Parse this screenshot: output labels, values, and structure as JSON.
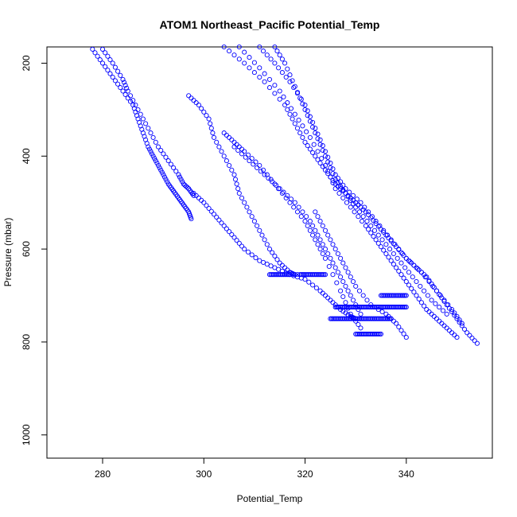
{
  "chart_data": {
    "type": "scatter",
    "title": "ATOM1 Northeast_Pacific Potential_Temp",
    "xlabel": "Potential_Temp",
    "ylabel": "Pressure (mbar)",
    "xlim": [
      269,
      357
    ],
    "ylim": [
      1050,
      165
    ],
    "y_reversed": true,
    "x_ticks": [
      280,
      300,
      320,
      340
    ],
    "y_ticks": [
      200,
      400,
      600,
      800,
      1000
    ],
    "marker": "open-circle",
    "color": "#0000ff",
    "grid": false,
    "series": [
      {
        "x": [
          278,
          280,
          282,
          284,
          286,
          287,
          288,
          289,
          290,
          291,
          292,
          293,
          294,
          295,
          296,
          297,
          297.5
        ],
        "y": [
          170,
          200,
          230,
          260,
          290,
          320,
          350,
          380,
          400,
          420,
          440,
          460,
          475,
          490,
          505,
          520,
          535
        ]
      },
      {
        "x": [
          280,
          282,
          284,
          285,
          287,
          289,
          291,
          293,
          295,
          296,
          297,
          298
        ],
        "y": [
          170,
          200,
          235,
          260,
          300,
          340,
          380,
          410,
          440,
          460,
          470,
          485
        ]
      },
      {
        "x": [
          297,
          299,
          301,
          302,
          304,
          306,
          307,
          309,
          311,
          313,
          315,
          317,
          318
        ],
        "y": [
          270,
          290,
          320,
          360,
          400,
          440,
          480,
          520,
          560,
          600,
          630,
          650,
          655
        ]
      },
      {
        "x": [
          298,
          300,
          302,
          304,
          306,
          308,
          311,
          314,
          317,
          320,
          323,
          325,
          327,
          329,
          330
        ],
        "y": [
          480,
          500,
          525,
          550,
          575,
          600,
          625,
          640,
          655,
          665,
          690,
          710,
          730,
          745,
          750
        ]
      },
      {
        "x": [
          304,
          306,
          308,
          311,
          314,
          317,
          320,
          322,
          324,
          327,
          329,
          331
        ],
        "y": [
          350,
          370,
          390,
          420,
          460,
          500,
          540,
          580,
          620,
          690,
          740,
          770
        ]
      },
      {
        "x": [
          306,
          309,
          312,
          315,
          318,
          321,
          323,
          325,
          327,
          329,
          331
        ],
        "y": [
          380,
          410,
          440,
          470,
          500,
          540,
          580,
          620,
          660,
          700,
          740
        ]
      },
      {
        "x": [
          304,
          308,
          312,
          316,
          318,
          320,
          322,
          324,
          326,
          328,
          330,
          332,
          334,
          336,
          338,
          340,
          342,
          344,
          346,
          348,
          350,
          352,
          354
        ],
        "y": [
          165,
          200,
          240,
          290,
          330,
          370,
          400,
          430,
          460,
          480,
          500,
          520,
          545,
          570,
          595,
          620,
          640,
          660,
          690,
          720,
          750,
          780,
          803
        ]
      },
      {
        "x": [
          307,
          311,
          315,
          318,
          321,
          324,
          326,
          329,
          332,
          334,
          336,
          338,
          340,
          342,
          344,
          346,
          348,
          350
        ],
        "y": [
          165,
          210,
          260,
          310,
          360,
          420,
          470,
          510,
          550,
          580,
          610,
          640,
          670,
          700,
          730,
          750,
          770,
          790
        ]
      },
      {
        "x": [
          311,
          314,
          317,
          320,
          322,
          324,
          326,
          328,
          331,
          334,
          337,
          340,
          343,
          346,
          349,
          351
        ],
        "y": [
          165,
          200,
          240,
          290,
          340,
          390,
          440,
          470,
          500,
          540,
          580,
          620,
          650,
          690,
          730,
          760
        ]
      },
      {
        "x": [
          314,
          316,
          318,
          320,
          322,
          324,
          326,
          328,
          330,
          333,
          336,
          339,
          342,
          345,
          348
        ],
        "y": [
          165,
          200,
          250,
          300,
          350,
          400,
          450,
          480,
          510,
          550,
          590,
          630,
          670,
          710,
          740
        ]
      },
      {
        "x": [
          322,
          324,
          326,
          328,
          330,
          333,
          336,
          338,
          340
        ],
        "y": [
          520,
          560,
          600,
          640,
          680,
          720,
          740,
          760,
          790
        ]
      },
      {
        "x": [
          313,
          314,
          315,
          316,
          317,
          319,
          320,
          321,
          322,
          323,
          324
        ],
        "y": [
          655,
          655,
          655,
          655,
          655,
          655,
          655,
          655,
          655,
          655,
          655
        ]
      },
      {
        "x": [
          326,
          327,
          328,
          329,
          330,
          331,
          332,
          333,
          334,
          335,
          336,
          337,
          338,
          339,
          340
        ],
        "y": [
          725,
          725,
          725,
          725,
          725,
          725,
          725,
          725,
          725,
          725,
          725,
          725,
          725,
          725,
          725
        ]
      },
      {
        "x": [
          325,
          326,
          327,
          328,
          329,
          330,
          331,
          332,
          333,
          334,
          335,
          336,
          337
        ],
        "y": [
          750,
          750,
          750,
          750,
          750,
          750,
          750,
          750,
          750,
          750,
          750,
          750,
          750
        ]
      },
      {
        "x": [
          330,
          331,
          332,
          333,
          334,
          335
        ],
        "y": [
          783,
          783,
          783,
          783,
          783,
          783
        ]
      },
      {
        "x": [
          335,
          336,
          337,
          338,
          339,
          340
        ],
        "y": [
          700,
          700,
          700,
          700,
          700,
          700
        ]
      }
    ]
  }
}
